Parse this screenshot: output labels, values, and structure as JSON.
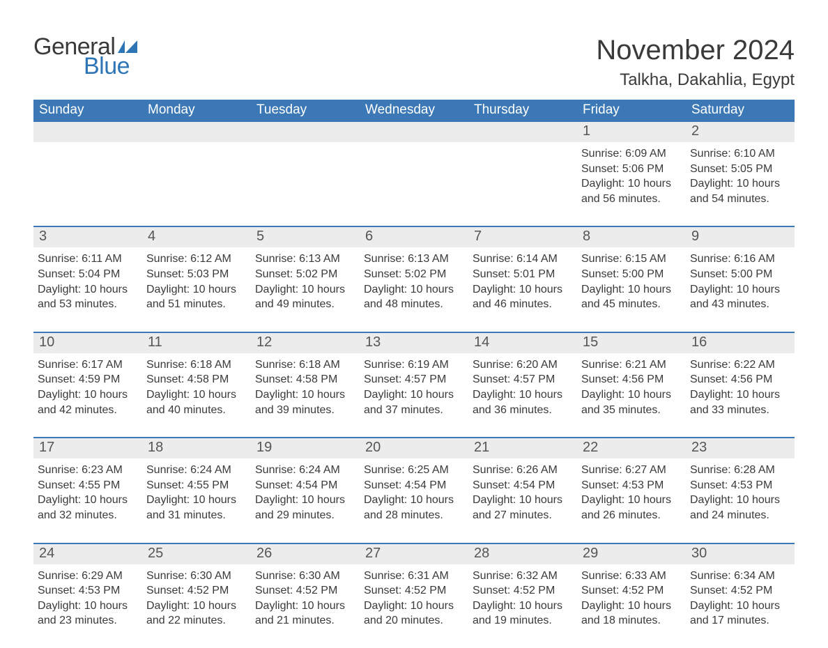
{
  "branding": {
    "word1": "General",
    "word2": "Blue",
    "word1_color": "#3a3a3a",
    "word2_color": "#2e75b6",
    "flag_color": "#2e75b6"
  },
  "header": {
    "title": "November 2024",
    "location": "Talkha, Dakahlia, Egypt"
  },
  "style": {
    "header_row_bg": "#3b78b5",
    "header_row_fg": "#ffffff",
    "daynum_bg": "#ececec",
    "daynum_border": "#3b78b5",
    "body_bg": "#ffffff",
    "text_color": "#3a3a3a",
    "title_fontsize": 40,
    "location_fontsize": 24,
    "weekday_fontsize": 19,
    "daynum_fontsize": 20,
    "detail_fontsize": 16
  },
  "calendar": {
    "weekdays": [
      "Sunday",
      "Monday",
      "Tuesday",
      "Wednesday",
      "Thursday",
      "Friday",
      "Saturday"
    ],
    "weeks": [
      [
        {
          "empty": true
        },
        {
          "empty": true
        },
        {
          "empty": true
        },
        {
          "empty": true
        },
        {
          "empty": true
        },
        {
          "day": "1",
          "sunrise": "Sunrise: 6:09 AM",
          "sunset": "Sunset: 5:06 PM",
          "daylight1": "Daylight: 10 hours",
          "daylight2": "and 56 minutes."
        },
        {
          "day": "2",
          "sunrise": "Sunrise: 6:10 AM",
          "sunset": "Sunset: 5:05 PM",
          "daylight1": "Daylight: 10 hours",
          "daylight2": "and 54 minutes."
        }
      ],
      [
        {
          "day": "3",
          "sunrise": "Sunrise: 6:11 AM",
          "sunset": "Sunset: 5:04 PM",
          "daylight1": "Daylight: 10 hours",
          "daylight2": "and 53 minutes."
        },
        {
          "day": "4",
          "sunrise": "Sunrise: 6:12 AM",
          "sunset": "Sunset: 5:03 PM",
          "daylight1": "Daylight: 10 hours",
          "daylight2": "and 51 minutes."
        },
        {
          "day": "5",
          "sunrise": "Sunrise: 6:13 AM",
          "sunset": "Sunset: 5:02 PM",
          "daylight1": "Daylight: 10 hours",
          "daylight2": "and 49 minutes."
        },
        {
          "day": "6",
          "sunrise": "Sunrise: 6:13 AM",
          "sunset": "Sunset: 5:02 PM",
          "daylight1": "Daylight: 10 hours",
          "daylight2": "and 48 minutes."
        },
        {
          "day": "7",
          "sunrise": "Sunrise: 6:14 AM",
          "sunset": "Sunset: 5:01 PM",
          "daylight1": "Daylight: 10 hours",
          "daylight2": "and 46 minutes."
        },
        {
          "day": "8",
          "sunrise": "Sunrise: 6:15 AM",
          "sunset": "Sunset: 5:00 PM",
          "daylight1": "Daylight: 10 hours",
          "daylight2": "and 45 minutes."
        },
        {
          "day": "9",
          "sunrise": "Sunrise: 6:16 AM",
          "sunset": "Sunset: 5:00 PM",
          "daylight1": "Daylight: 10 hours",
          "daylight2": "and 43 minutes."
        }
      ],
      [
        {
          "day": "10",
          "sunrise": "Sunrise: 6:17 AM",
          "sunset": "Sunset: 4:59 PM",
          "daylight1": "Daylight: 10 hours",
          "daylight2": "and 42 minutes."
        },
        {
          "day": "11",
          "sunrise": "Sunrise: 6:18 AM",
          "sunset": "Sunset: 4:58 PM",
          "daylight1": "Daylight: 10 hours",
          "daylight2": "and 40 minutes."
        },
        {
          "day": "12",
          "sunrise": "Sunrise: 6:18 AM",
          "sunset": "Sunset: 4:58 PM",
          "daylight1": "Daylight: 10 hours",
          "daylight2": "and 39 minutes."
        },
        {
          "day": "13",
          "sunrise": "Sunrise: 6:19 AM",
          "sunset": "Sunset: 4:57 PM",
          "daylight1": "Daylight: 10 hours",
          "daylight2": "and 37 minutes."
        },
        {
          "day": "14",
          "sunrise": "Sunrise: 6:20 AM",
          "sunset": "Sunset: 4:57 PM",
          "daylight1": "Daylight: 10 hours",
          "daylight2": "and 36 minutes."
        },
        {
          "day": "15",
          "sunrise": "Sunrise: 6:21 AM",
          "sunset": "Sunset: 4:56 PM",
          "daylight1": "Daylight: 10 hours",
          "daylight2": "and 35 minutes."
        },
        {
          "day": "16",
          "sunrise": "Sunrise: 6:22 AM",
          "sunset": "Sunset: 4:56 PM",
          "daylight1": "Daylight: 10 hours",
          "daylight2": "and 33 minutes."
        }
      ],
      [
        {
          "day": "17",
          "sunrise": "Sunrise: 6:23 AM",
          "sunset": "Sunset: 4:55 PM",
          "daylight1": "Daylight: 10 hours",
          "daylight2": "and 32 minutes."
        },
        {
          "day": "18",
          "sunrise": "Sunrise: 6:24 AM",
          "sunset": "Sunset: 4:55 PM",
          "daylight1": "Daylight: 10 hours",
          "daylight2": "and 31 minutes."
        },
        {
          "day": "19",
          "sunrise": "Sunrise: 6:24 AM",
          "sunset": "Sunset: 4:54 PM",
          "daylight1": "Daylight: 10 hours",
          "daylight2": "and 29 minutes."
        },
        {
          "day": "20",
          "sunrise": "Sunrise: 6:25 AM",
          "sunset": "Sunset: 4:54 PM",
          "daylight1": "Daylight: 10 hours",
          "daylight2": "and 28 minutes."
        },
        {
          "day": "21",
          "sunrise": "Sunrise: 6:26 AM",
          "sunset": "Sunset: 4:54 PM",
          "daylight1": "Daylight: 10 hours",
          "daylight2": "and 27 minutes."
        },
        {
          "day": "22",
          "sunrise": "Sunrise: 6:27 AM",
          "sunset": "Sunset: 4:53 PM",
          "daylight1": "Daylight: 10 hours",
          "daylight2": "and 26 minutes."
        },
        {
          "day": "23",
          "sunrise": "Sunrise: 6:28 AM",
          "sunset": "Sunset: 4:53 PM",
          "daylight1": "Daylight: 10 hours",
          "daylight2": "and 24 minutes."
        }
      ],
      [
        {
          "day": "24",
          "sunrise": "Sunrise: 6:29 AM",
          "sunset": "Sunset: 4:53 PM",
          "daylight1": "Daylight: 10 hours",
          "daylight2": "and 23 minutes."
        },
        {
          "day": "25",
          "sunrise": "Sunrise: 6:30 AM",
          "sunset": "Sunset: 4:52 PM",
          "daylight1": "Daylight: 10 hours",
          "daylight2": "and 22 minutes."
        },
        {
          "day": "26",
          "sunrise": "Sunrise: 6:30 AM",
          "sunset": "Sunset: 4:52 PM",
          "daylight1": "Daylight: 10 hours",
          "daylight2": "and 21 minutes."
        },
        {
          "day": "27",
          "sunrise": "Sunrise: 6:31 AM",
          "sunset": "Sunset: 4:52 PM",
          "daylight1": "Daylight: 10 hours",
          "daylight2": "and 20 minutes."
        },
        {
          "day": "28",
          "sunrise": "Sunrise: 6:32 AM",
          "sunset": "Sunset: 4:52 PM",
          "daylight1": "Daylight: 10 hours",
          "daylight2": "and 19 minutes."
        },
        {
          "day": "29",
          "sunrise": "Sunrise: 6:33 AM",
          "sunset": "Sunset: 4:52 PM",
          "daylight1": "Daylight: 10 hours",
          "daylight2": "and 18 minutes."
        },
        {
          "day": "30",
          "sunrise": "Sunrise: 6:34 AM",
          "sunset": "Sunset: 4:52 PM",
          "daylight1": "Daylight: 10 hours",
          "daylight2": "and 17 minutes."
        }
      ]
    ]
  }
}
